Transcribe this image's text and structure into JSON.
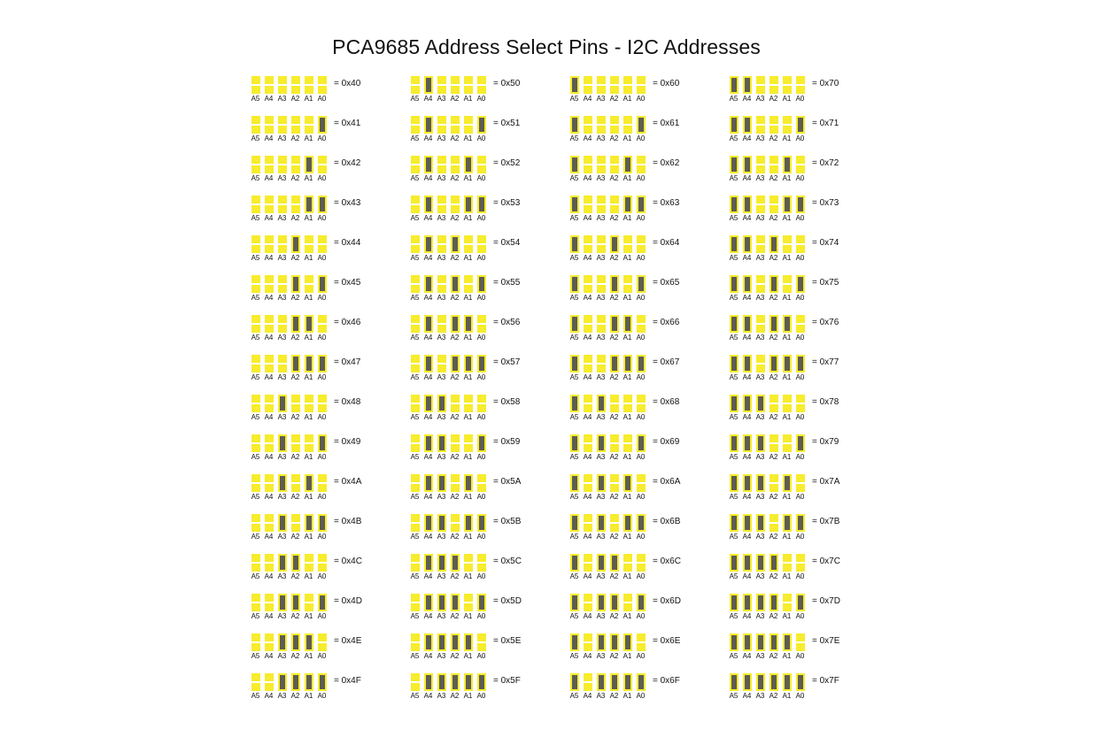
{
  "title": "PCA9685 Address Select Pins - I2C Addresses",
  "colors": {
    "pad_open": "#f7ec2d",
    "pad_bridged": "#5e5d52"
  },
  "pin_labels": [
    "A5",
    "A4",
    "A3",
    "A2",
    "A1",
    "A0"
  ],
  "entries": [
    {
      "address": "0x40",
      "label": "= 0x40",
      "pins": [
        0,
        0,
        0,
        0,
        0,
        0
      ]
    },
    {
      "address": "0x41",
      "label": "= 0x41",
      "pins": [
        0,
        0,
        0,
        0,
        0,
        1
      ]
    },
    {
      "address": "0x42",
      "label": "= 0x42",
      "pins": [
        0,
        0,
        0,
        0,
        1,
        0
      ]
    },
    {
      "address": "0x43",
      "label": "= 0x43",
      "pins": [
        0,
        0,
        0,
        0,
        1,
        1
      ]
    },
    {
      "address": "0x44",
      "label": "= 0x44",
      "pins": [
        0,
        0,
        0,
        1,
        0,
        0
      ]
    },
    {
      "address": "0x45",
      "label": "= 0x45",
      "pins": [
        0,
        0,
        0,
        1,
        0,
        1
      ]
    },
    {
      "address": "0x46",
      "label": "= 0x46",
      "pins": [
        0,
        0,
        0,
        1,
        1,
        0
      ]
    },
    {
      "address": "0x47",
      "label": "= 0x47",
      "pins": [
        0,
        0,
        0,
        1,
        1,
        1
      ]
    },
    {
      "address": "0x48",
      "label": "= 0x48",
      "pins": [
        0,
        0,
        1,
        0,
        0,
        0
      ]
    },
    {
      "address": "0x49",
      "label": "= 0x49",
      "pins": [
        0,
        0,
        1,
        0,
        0,
        1
      ]
    },
    {
      "address": "0x4A",
      "label": "= 0x4A",
      "pins": [
        0,
        0,
        1,
        0,
        1,
        0
      ]
    },
    {
      "address": "0x4B",
      "label": "= 0x4B",
      "pins": [
        0,
        0,
        1,
        0,
        1,
        1
      ]
    },
    {
      "address": "0x4C",
      "label": "= 0x4C",
      "pins": [
        0,
        0,
        1,
        1,
        0,
        0
      ]
    },
    {
      "address": "0x4D",
      "label": "= 0x4D",
      "pins": [
        0,
        0,
        1,
        1,
        0,
        1
      ]
    },
    {
      "address": "0x4E",
      "label": "= 0x4E",
      "pins": [
        0,
        0,
        1,
        1,
        1,
        0
      ]
    },
    {
      "address": "0x4F",
      "label": "= 0x4F",
      "pins": [
        0,
        0,
        1,
        1,
        1,
        1
      ]
    },
    {
      "address": "0x50",
      "label": "= 0x50",
      "pins": [
        0,
        1,
        0,
        0,
        0,
        0
      ]
    },
    {
      "address": "0x51",
      "label": "= 0x51",
      "pins": [
        0,
        1,
        0,
        0,
        0,
        1
      ]
    },
    {
      "address": "0x52",
      "label": "= 0x52",
      "pins": [
        0,
        1,
        0,
        0,
        1,
        0
      ]
    },
    {
      "address": "0x53",
      "label": "= 0x53",
      "pins": [
        0,
        1,
        0,
        0,
        1,
        1
      ]
    },
    {
      "address": "0x54",
      "label": "= 0x54",
      "pins": [
        0,
        1,
        0,
        1,
        0,
        0
      ]
    },
    {
      "address": "0x55",
      "label": "= 0x55",
      "pins": [
        0,
        1,
        0,
        1,
        0,
        1
      ]
    },
    {
      "address": "0x56",
      "label": "= 0x56",
      "pins": [
        0,
        1,
        0,
        1,
        1,
        0
      ]
    },
    {
      "address": "0x57",
      "label": "= 0x57",
      "pins": [
        0,
        1,
        0,
        1,
        1,
        1
      ]
    },
    {
      "address": "0x58",
      "label": "= 0x58",
      "pins": [
        0,
        1,
        1,
        0,
        0,
        0
      ]
    },
    {
      "address": "0x59",
      "label": "= 0x59",
      "pins": [
        0,
        1,
        1,
        0,
        0,
        1
      ]
    },
    {
      "address": "0x5A",
      "label": "= 0x5A",
      "pins": [
        0,
        1,
        1,
        0,
        1,
        0
      ]
    },
    {
      "address": "0x5B",
      "label": "= 0x5B",
      "pins": [
        0,
        1,
        1,
        0,
        1,
        1
      ]
    },
    {
      "address": "0x5C",
      "label": "= 0x5C",
      "pins": [
        0,
        1,
        1,
        1,
        0,
        0
      ]
    },
    {
      "address": "0x5D",
      "label": "= 0x5D",
      "pins": [
        0,
        1,
        1,
        1,
        0,
        1
      ]
    },
    {
      "address": "0x5E",
      "label": "= 0x5E",
      "pins": [
        0,
        1,
        1,
        1,
        1,
        0
      ]
    },
    {
      "address": "0x5F",
      "label": "= 0x5F",
      "pins": [
        0,
        1,
        1,
        1,
        1,
        1
      ]
    },
    {
      "address": "0x60",
      "label": "= 0x60",
      "pins": [
        1,
        0,
        0,
        0,
        0,
        0
      ]
    },
    {
      "address": "0x61",
      "label": "= 0x61",
      "pins": [
        1,
        0,
        0,
        0,
        0,
        1
      ]
    },
    {
      "address": "0x62",
      "label": "= 0x62",
      "pins": [
        1,
        0,
        0,
        0,
        1,
        0
      ]
    },
    {
      "address": "0x63",
      "label": "= 0x63",
      "pins": [
        1,
        0,
        0,
        0,
        1,
        1
      ]
    },
    {
      "address": "0x64",
      "label": "= 0x64",
      "pins": [
        1,
        0,
        0,
        1,
        0,
        0
      ]
    },
    {
      "address": "0x65",
      "label": "= 0x65",
      "pins": [
        1,
        0,
        0,
        1,
        0,
        1
      ]
    },
    {
      "address": "0x66",
      "label": "= 0x66",
      "pins": [
        1,
        0,
        0,
        1,
        1,
        0
      ]
    },
    {
      "address": "0x67",
      "label": "= 0x67",
      "pins": [
        1,
        0,
        0,
        1,
        1,
        1
      ]
    },
    {
      "address": "0x68",
      "label": "= 0x68",
      "pins": [
        1,
        0,
        1,
        0,
        0,
        0
      ]
    },
    {
      "address": "0x69",
      "label": "= 0x69",
      "pins": [
        1,
        0,
        1,
        0,
        0,
        1
      ]
    },
    {
      "address": "0x6A",
      "label": "= 0x6A",
      "pins": [
        1,
        0,
        1,
        0,
        1,
        0
      ]
    },
    {
      "address": "0x6B",
      "label": "= 0x6B",
      "pins": [
        1,
        0,
        1,
        0,
        1,
        1
      ]
    },
    {
      "address": "0x6C",
      "label": "= 0x6C",
      "pins": [
        1,
        0,
        1,
        1,
        0,
        0
      ]
    },
    {
      "address": "0x6D",
      "label": "= 0x6D",
      "pins": [
        1,
        0,
        1,
        1,
        0,
        1
      ]
    },
    {
      "address": "0x6E",
      "label": "= 0x6E",
      "pins": [
        1,
        0,
        1,
        1,
        1,
        0
      ]
    },
    {
      "address": "0x6F",
      "label": "= 0x6F",
      "pins": [
        1,
        0,
        1,
        1,
        1,
        1
      ]
    },
    {
      "address": "0x70",
      "label": "= 0x70",
      "pins": [
        1,
        1,
        0,
        0,
        0,
        0
      ]
    },
    {
      "address": "0x71",
      "label": "= 0x71",
      "pins": [
        1,
        1,
        0,
        0,
        0,
        1
      ]
    },
    {
      "address": "0x72",
      "label": "= 0x72",
      "pins": [
        1,
        1,
        0,
        0,
        1,
        0
      ]
    },
    {
      "address": "0x73",
      "label": "= 0x73",
      "pins": [
        1,
        1,
        0,
        0,
        1,
        1
      ]
    },
    {
      "address": "0x74",
      "label": "= 0x74",
      "pins": [
        1,
        1,
        0,
        1,
        0,
        0
      ]
    },
    {
      "address": "0x75",
      "label": "= 0x75",
      "pins": [
        1,
        1,
        0,
        1,
        0,
        1
      ]
    },
    {
      "address": "0x76",
      "label": "= 0x76",
      "pins": [
        1,
        1,
        0,
        1,
        1,
        0
      ]
    },
    {
      "address": "0x77",
      "label": "= 0x77",
      "pins": [
        1,
        1,
        0,
        1,
        1,
        1
      ]
    },
    {
      "address": "0x78",
      "label": "= 0x78",
      "pins": [
        1,
        1,
        1,
        0,
        0,
        0
      ]
    },
    {
      "address": "0x79",
      "label": "= 0x79",
      "pins": [
        1,
        1,
        1,
        0,
        0,
        1
      ]
    },
    {
      "address": "0x7A",
      "label": "= 0x7A",
      "pins": [
        1,
        1,
        1,
        0,
        1,
        0
      ]
    },
    {
      "address": "0x7B",
      "label": "= 0x7B",
      "pins": [
        1,
        1,
        1,
        0,
        1,
        1
      ]
    },
    {
      "address": "0x7C",
      "label": "= 0x7C",
      "pins": [
        1,
        1,
        1,
        1,
        0,
        0
      ]
    },
    {
      "address": "0x7D",
      "label": "= 0x7D",
      "pins": [
        1,
        1,
        1,
        1,
        0,
        1
      ]
    },
    {
      "address": "0x7E",
      "label": "= 0x7E",
      "pins": [
        1,
        1,
        1,
        1,
        1,
        0
      ]
    },
    {
      "address": "0x7F",
      "label": "= 0x7F",
      "pins": [
        1,
        1,
        1,
        1,
        1,
        1
      ]
    }
  ]
}
